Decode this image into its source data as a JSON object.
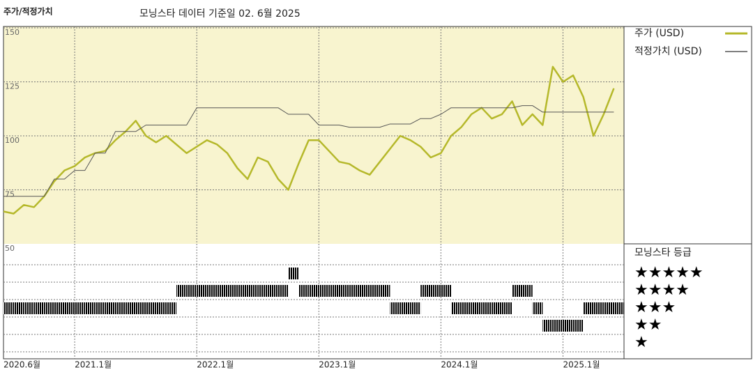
{
  "chart_data": {
    "type": "line",
    "header": "주가/적정가치",
    "title": "모닝스타 데이터 기준일 02. 6월 2025",
    "x": [
      "2020-06",
      "2020-07",
      "2020-08",
      "2020-09",
      "2020-10",
      "2020-11",
      "2020-12",
      "2021-01",
      "2021-02",
      "2021-03",
      "2021-04",
      "2021-05",
      "2021-06",
      "2021-07",
      "2021-08",
      "2021-09",
      "2021-10",
      "2021-11",
      "2021-12",
      "2022-01",
      "2022-02",
      "2022-03",
      "2022-04",
      "2022-05",
      "2022-06",
      "2022-07",
      "2022-08",
      "2022-09",
      "2022-10",
      "2022-11",
      "2022-12",
      "2023-01",
      "2023-02",
      "2023-03",
      "2023-04",
      "2023-05",
      "2023-06",
      "2023-07",
      "2023-08",
      "2023-09",
      "2023-10",
      "2023-11",
      "2023-12",
      "2024-01",
      "2024-02",
      "2024-03",
      "2024-04",
      "2024-05",
      "2024-06",
      "2024-07",
      "2024-08",
      "2024-09",
      "2024-10",
      "2024-11",
      "2024-12",
      "2025-01",
      "2025-02",
      "2025-03",
      "2025-04",
      "2025-05",
      "2025-06"
    ],
    "xlim": [
      "2020-06",
      "2025-07"
    ],
    "xticks": [
      {
        "value": "2020-06",
        "label": "2020.6월"
      },
      {
        "value": "2021-01",
        "label": "2021.1월"
      },
      {
        "value": "2022-01",
        "label": "2022.1월"
      },
      {
        "value": "2023-01",
        "label": "2023.1월"
      },
      {
        "value": "2024-01",
        "label": "2024.1월"
      },
      {
        "value": "2025-01",
        "label": "2025.1월"
      }
    ],
    "ylim": [
      50,
      150
    ],
    "yticks": [
      50,
      75,
      100,
      125,
      150
    ],
    "grid": true,
    "series": [
      {
        "name": "주가 (USD)",
        "color": "#b5b82a",
        "width": 2.5,
        "values": [
          65,
          64,
          68,
          67,
          72,
          79,
          84,
          86,
          90,
          92,
          93,
          98,
          102,
          107,
          100,
          97,
          100,
          96,
          92,
          95,
          98,
          96,
          92,
          85,
          80,
          90,
          88,
          80,
          75,
          87,
          98,
          98,
          93,
          88,
          87,
          84,
          82,
          88,
          94,
          100,
          98,
          95,
          90,
          92,
          100,
          104,
          110,
          113,
          108,
          110,
          116,
          105,
          110,
          105,
          132,
          125,
          128,
          118,
          100,
          110,
          122
        ]
      },
      {
        "name": "적정가치 (USD)",
        "color": "#555555",
        "width": 1,
        "values": [
          72,
          72,
          72,
          72,
          72,
          80,
          80,
          84,
          84,
          92,
          92,
          102,
          102,
          102,
          105,
          105,
          105,
          105,
          105,
          113,
          113,
          113,
          113,
          113,
          113,
          113,
          113,
          113,
          110,
          110,
          110,
          105,
          105,
          105,
          104,
          104,
          104,
          104,
          105.5,
          105.5,
          105.5,
          108,
          108,
          110,
          113,
          113,
          113,
          113,
          113,
          113,
          113,
          114,
          114,
          111,
          111,
          111,
          111,
          111,
          111,
          111,
          111
        ]
      }
    ],
    "rating": {
      "name": "모닝스타 등급",
      "color": "#222222",
      "top_color": "#3a7a5e",
      "star_labels": [
        "★★★★★",
        "★★★★",
        "★★★",
        "★★",
        "★"
      ],
      "values": [
        3,
        3,
        3,
        3,
        3,
        3,
        3,
        3,
        3,
        3,
        3,
        3,
        3,
        3,
        3,
        3,
        3,
        4,
        4,
        4,
        4,
        4,
        4,
        4,
        4,
        4,
        4,
        4,
        5,
        4,
        4,
        4,
        4,
        4,
        4,
        4,
        4,
        4,
        3,
        3,
        3,
        4,
        4,
        4,
        3,
        3,
        3,
        3,
        3,
        3,
        4,
        4,
        3,
        2,
        2,
        2,
        2,
        3,
        3,
        3,
        3
      ]
    }
  }
}
